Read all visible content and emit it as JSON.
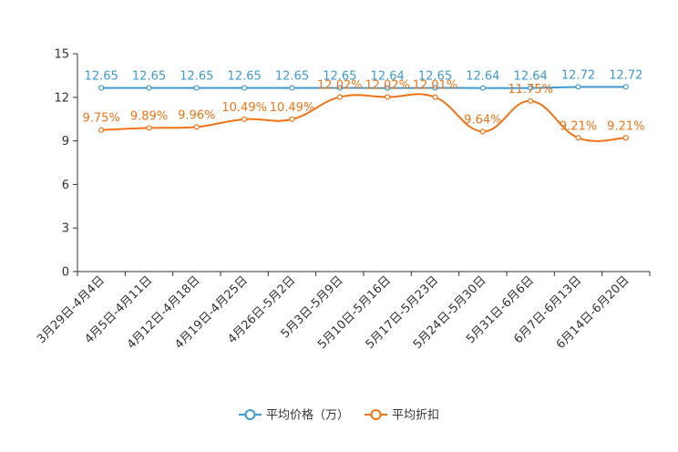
{
  "chart_data": {
    "type": "line",
    "title": "",
    "xlabel": "",
    "ylabel": "",
    "ylim": [
      0,
      15
    ],
    "yticks": [
      0,
      3,
      6,
      9,
      12,
      15
    ],
    "grid": false,
    "legend_position": "bottom-center",
    "categories": [
      "3月29日-4月4日",
      "4月5日-4月11日",
      "4月12日-4月18日",
      "4月19日-4月25日",
      "4月26日-5月2日",
      "5月3日-5月9日",
      "5月10日-5月16日",
      "5月17日-5月23日",
      "5月24日-5月30日",
      "5月31日-6月6日",
      "6月7日-6月13日",
      "6月14日-6月20日"
    ],
    "series": [
      {
        "name": "平均价格（万）",
        "color": "#3d9ad1",
        "smooth": false,
        "values": [
          12.65,
          12.65,
          12.65,
          12.65,
          12.65,
          12.65,
          12.64,
          12.65,
          12.64,
          12.64,
          12.72,
          12.72
        ],
        "labels": [
          "12.65",
          "12.65",
          "12.65",
          "12.65",
          "12.65",
          "12.65",
          "12.64",
          "12.65",
          "12.64",
          "12.64",
          "12.72",
          "12.72"
        ]
      },
      {
        "name": "平均折扣",
        "color": "#f07317",
        "smooth": true,
        "values": [
          9.75,
          9.89,
          9.96,
          10.49,
          10.49,
          12.02,
          12.02,
          12.01,
          9.64,
          11.75,
          9.21,
          9.21
        ],
        "labels": [
          "9.75%",
          "9.89%",
          "9.96%",
          "10.49%",
          "10.49%",
          "12.02%",
          "12.02%",
          "12.01%",
          "9.64%",
          "11.75%",
          "9.21%",
          "9.21%"
        ]
      }
    ]
  }
}
